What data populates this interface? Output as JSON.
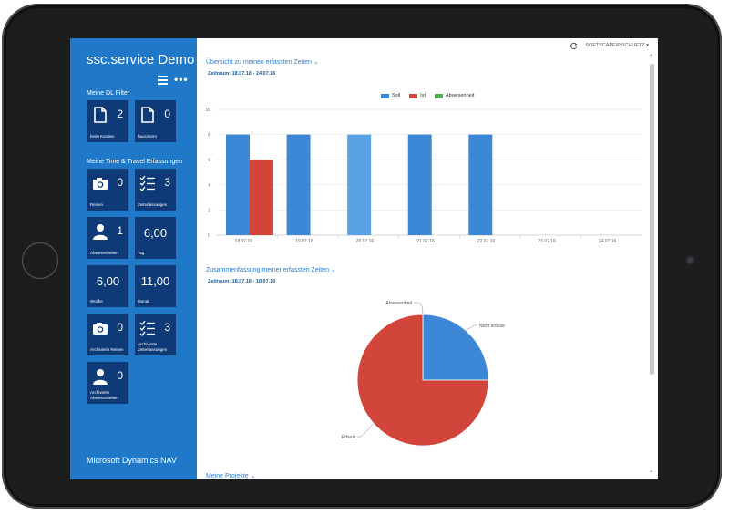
{
  "app": {
    "title": "ssc.service Demo",
    "footer": "Microsoft Dynamics NAV"
  },
  "sidebar": {
    "filter_section": "Meine DL Filter",
    "time_section": "Meine Time & Travel Erfassungen",
    "tiles": [
      {
        "id": "beim-kunden",
        "value": "2",
        "label": "beim Kunden",
        "icon": "document-icon"
      },
      {
        "id": "hausintern",
        "value": "0",
        "label": "hausintern",
        "icon": "document-icon"
      },
      {
        "id": "reisen",
        "value": "0",
        "label": "Reisen",
        "icon": "camera-icon"
      },
      {
        "id": "zeiterfassungen",
        "value": "3",
        "label": "Zeiterfassungen",
        "icon": "checklist-icon"
      },
      {
        "id": "abwesenheiten",
        "value": "1",
        "label": "Abwesenheiten",
        "icon": "person-icon"
      },
      {
        "id": "tag",
        "value": "6,00",
        "label": "Tag",
        "icon": ""
      },
      {
        "id": "woche",
        "value": "6,00",
        "label": "Woche",
        "icon": ""
      },
      {
        "id": "monat",
        "value": "11,00",
        "label": "Monat",
        "icon": ""
      },
      {
        "id": "archivierte-reisen",
        "value": "0",
        "label": "Archivierte Reisen",
        "icon": "camera-icon"
      },
      {
        "id": "archivierte-zeiterfassungen",
        "value": "3",
        "label": "Archivierte Zeiterfassungen",
        "icon": "checklist-icon"
      },
      {
        "id": "archivierte-abwesenheiten",
        "value": "0",
        "label": "Archivierte Abwesenheiten",
        "icon": "person-icon"
      }
    ]
  },
  "topbar": {
    "user": "SOFTSCAPE\\P.SCHUETZ ▾"
  },
  "sections": {
    "overview_title": "Übersicht zu meinen erfassten Zeiten ⌄",
    "overview_period": "Zeitraum: 18.07.16 - 24.07.16",
    "summary_title": "Zusammenfassung meiner erfassten Zeiten ⌄",
    "summary_period": "Zeitraum: 18.07.16 - 18.07.16",
    "projects_title": "Meine Projekte ⌄"
  },
  "colors": {
    "soll": "#3d88d6",
    "ist": "#d2453a",
    "abwesenheit": "#4caf50",
    "soll_light": "#5aa2e6"
  },
  "chart_data": [
    {
      "type": "bar",
      "categories": [
        "18.07.16",
        "19.07.16",
        "20.07.16",
        "21.07.16",
        "22.07.16",
        "23.07.16",
        "24.07.16"
      ],
      "series": [
        {
          "name": "Soll",
          "values": [
            8,
            8,
            8,
            8,
            8,
            0,
            0
          ]
        },
        {
          "name": "Ist",
          "values": [
            6,
            0,
            0,
            0,
            0,
            0,
            0
          ]
        },
        {
          "name": "Abwesenheit",
          "values": [
            0,
            0,
            0,
            0,
            0,
            0,
            0
          ]
        }
      ],
      "ylim": [
        0,
        10
      ],
      "yticks": [
        0,
        2,
        4,
        6,
        8,
        10
      ],
      "legend": "top-center",
      "grid": true
    },
    {
      "type": "pie",
      "slices": [
        {
          "label": "Nicht erfasst",
          "value": 2
        },
        {
          "label": "Abwesenheit",
          "value": 0
        },
        {
          "label": "Erfasst",
          "value": 6
        }
      ]
    }
  ]
}
